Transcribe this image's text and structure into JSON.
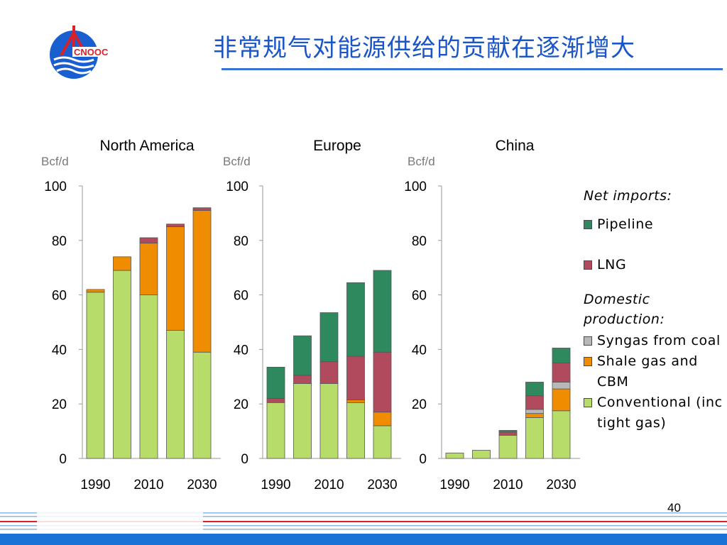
{
  "slide": {
    "title": "非常规气对能源供给的贡献在逐渐增大",
    "page_number": "40",
    "logo_text": "CNOOC"
  },
  "colors": {
    "pipeline": "#2e8a5e",
    "lng": "#b14a5c",
    "syngas": "#b8b8b8",
    "shale": "#f08c00",
    "conventional": "#b8dc6a",
    "title": "#1a56c8",
    "axis_unit": "#7a7a7a"
  },
  "legend": {
    "net_imports_heading": "Net imports:",
    "domestic_heading": "Domestic production:",
    "items": [
      {
        "key": "pipeline",
        "label": "Pipeline",
        "color": "#2e8a5e"
      },
      {
        "key": "lng",
        "label": "LNG",
        "color": "#b14a5c"
      },
      {
        "key": "syngas",
        "label": "Syngas from coal",
        "color": "#b8b8b8"
      },
      {
        "key": "shale",
        "label": "Shale gas and CBM",
        "color": "#f08c00"
      },
      {
        "key": "conventional",
        "label": "Conventional (inc tight gas)",
        "color": "#b8dc6a"
      }
    ]
  },
  "chart_data": [
    {
      "type": "bar",
      "stacked": true,
      "title": "North America",
      "ylabel": "Bcf/d",
      "ylim": [
        0,
        100
      ],
      "yticks": [
        0,
        20,
        40,
        60,
        80,
        100
      ],
      "categories": [
        "1990",
        "2000",
        "2010",
        "2020",
        "2030"
      ],
      "category_labels_shown": [
        "1990",
        "2010",
        "2030"
      ],
      "series": [
        {
          "key": "conventional",
          "values": [
            61,
            69,
            60,
            47,
            39
          ]
        },
        {
          "key": "shale",
          "values": [
            1,
            5,
            19,
            38,
            52
          ]
        },
        {
          "key": "syngas",
          "values": [
            0,
            0,
            0,
            0,
            0
          ]
        },
        {
          "key": "lng",
          "values": [
            0,
            0,
            2,
            1,
            1
          ]
        },
        {
          "key": "pipeline",
          "values": [
            0,
            0,
            0,
            0,
            0
          ]
        }
      ]
    },
    {
      "type": "bar",
      "stacked": true,
      "title": "Europe",
      "ylabel": "Bcf/d",
      "ylim": [
        0,
        100
      ],
      "yticks": [
        0,
        20,
        40,
        60,
        80,
        100
      ],
      "categories": [
        "1990",
        "2000",
        "2010",
        "2020",
        "2030"
      ],
      "category_labels_shown": [
        "1990",
        "2010",
        "2030"
      ],
      "series": [
        {
          "key": "conventional",
          "values": [
            20.5,
            27.5,
            27.5,
            20.5,
            12
          ]
        },
        {
          "key": "shale",
          "values": [
            0,
            0,
            0,
            1,
            5
          ]
        },
        {
          "key": "syngas",
          "values": [
            0,
            0,
            0,
            0,
            0
          ]
        },
        {
          "key": "lng",
          "values": [
            1.5,
            3,
            8,
            16,
            22
          ]
        },
        {
          "key": "pipeline",
          "values": [
            11.5,
            14.5,
            18,
            27,
            30
          ]
        }
      ]
    },
    {
      "type": "bar",
      "stacked": true,
      "title": "China",
      "ylabel": "Bcf/d",
      "ylim": [
        0,
        100
      ],
      "yticks": [
        0,
        20,
        40,
        60,
        80,
        100
      ],
      "categories": [
        "1990",
        "2000",
        "2010",
        "2020",
        "2030"
      ],
      "category_labels_shown": [
        "1990",
        "2010",
        "2030"
      ],
      "series": [
        {
          "key": "conventional",
          "values": [
            2,
            3,
            8.5,
            15,
            17.5
          ]
        },
        {
          "key": "shale",
          "values": [
            0,
            0,
            0,
            1.5,
            8
          ]
        },
        {
          "key": "syngas",
          "values": [
            0,
            0,
            0,
            1.5,
            2.5
          ]
        },
        {
          "key": "lng",
          "values": [
            0,
            0,
            1.2,
            5,
            7
          ]
        },
        {
          "key": "pipeline",
          "values": [
            0,
            0,
            0.6,
            5,
            5.5
          ]
        }
      ]
    }
  ]
}
